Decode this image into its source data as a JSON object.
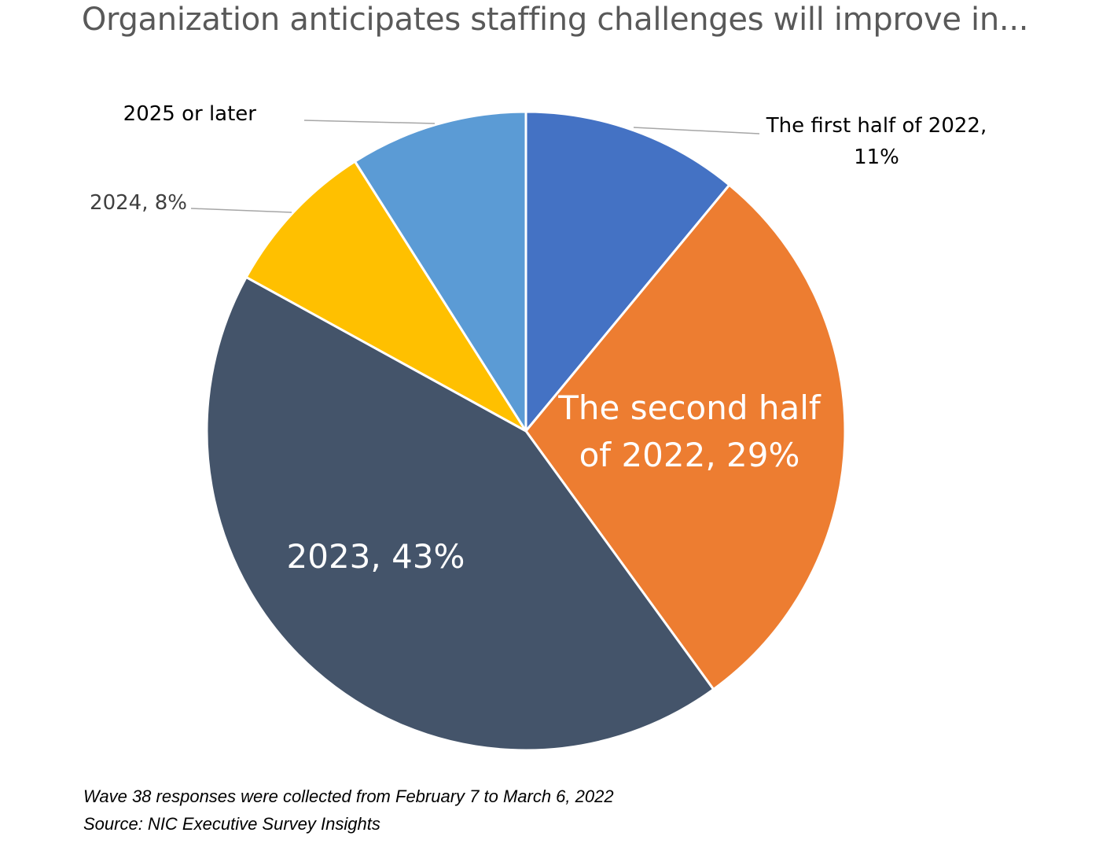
{
  "chart_data": {
    "type": "pie",
    "title": "Organization anticipates staffing challenges will improve in...",
    "slices": [
      {
        "name": "The first half of 2022",
        "value": 11,
        "color": "#4472C4",
        "label_lines": [
          "The first half of 2022,",
          "11%"
        ],
        "label_position": "outside-right"
      },
      {
        "name": "The second half of 2022",
        "value": 29,
        "color": "#ED7D31",
        "label_lines": [
          "The second half",
          "of 2022, 29%"
        ],
        "label_position": "inside"
      },
      {
        "name": "2023",
        "value": 43,
        "color": "#44546A",
        "label_lines": [
          "2023, 43%"
        ],
        "label_position": "inside"
      },
      {
        "name": "2024",
        "value": 8,
        "color": "#FFC000",
        "label_lines": [
          "2024, 8%"
        ],
        "label_position": "outside-left"
      },
      {
        "name": "2025 or later",
        "value": 9,
        "color": "#5B9BD5",
        "label_lines": [
          "2025 or later"
        ],
        "label_position": "outside-left"
      }
    ],
    "start": "12 o'clock, clockwise",
    "legend": "none",
    "slice_border_color": "#FFFFFF"
  },
  "footnotes": {
    "wave": "Wave 38 responses were collected from February 7 to March 6, 2022",
    "source": "Source: NIC Executive Survey Insights"
  }
}
